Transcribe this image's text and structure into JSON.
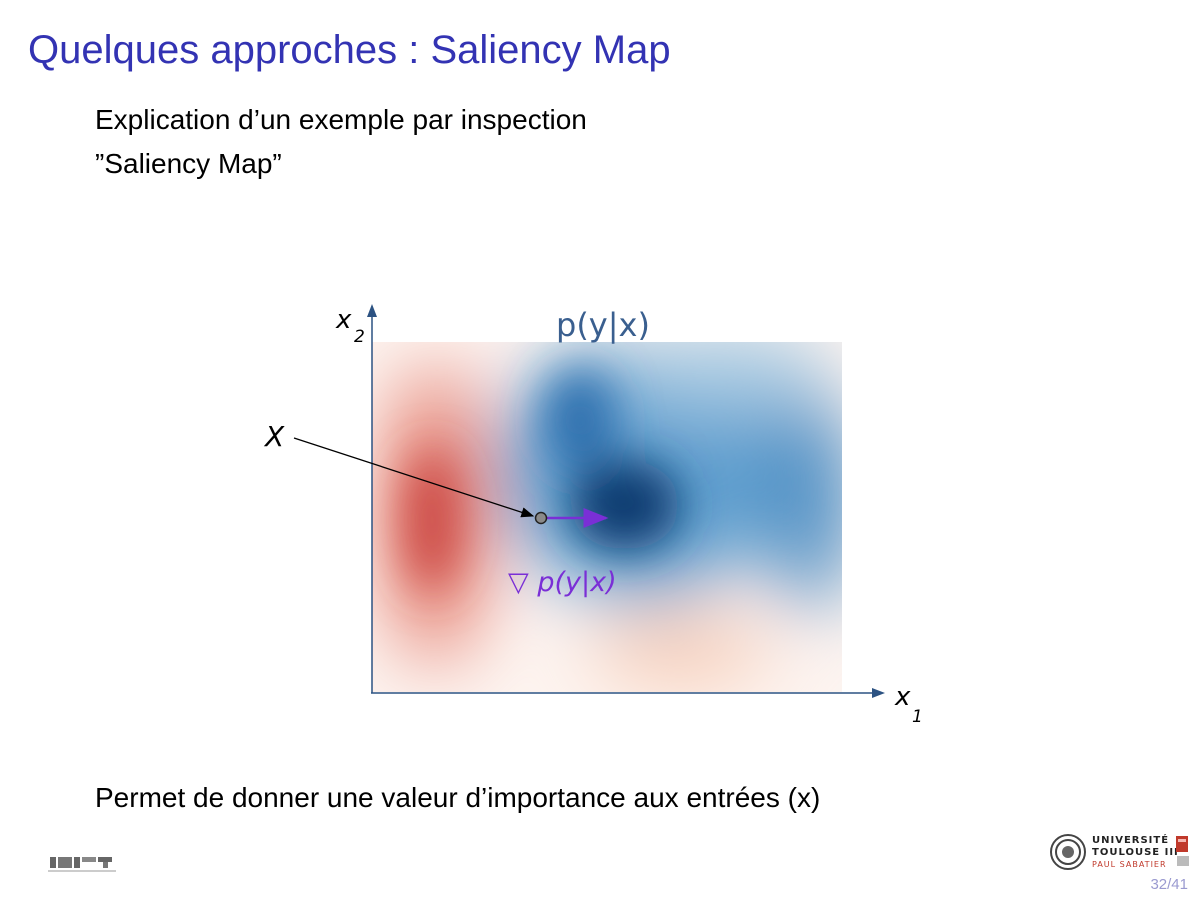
{
  "slide": {
    "title": "Quelques approches : Saliency Map",
    "subtitle_line1": "Explication d’un exemple par inspection",
    "subtitle_line2": "”Saliency Map”",
    "caption": "Permet de donner une valeur d’importance aux entrées (x)",
    "page_number": "32/41"
  },
  "diagram": {
    "axis_y_label": "x",
    "axis_y_sub": "2",
    "axis_x_label": "x",
    "axis_x_sub": "1",
    "map_title": "p(y|x)",
    "point_label": "X",
    "gradient_label": "▽ p(y|x)",
    "colors": {
      "axis": "#2c5282",
      "map_title": "#3a5f8f",
      "gradient": "#7a2fd6",
      "red": "#cc4a45",
      "blue": "#0a3b70"
    }
  },
  "logos": {
    "university_line1": "UNIVERSITÉ",
    "university_line2": "TOULOUSE III",
    "university_line3": "PAUL SABATIER"
  }
}
